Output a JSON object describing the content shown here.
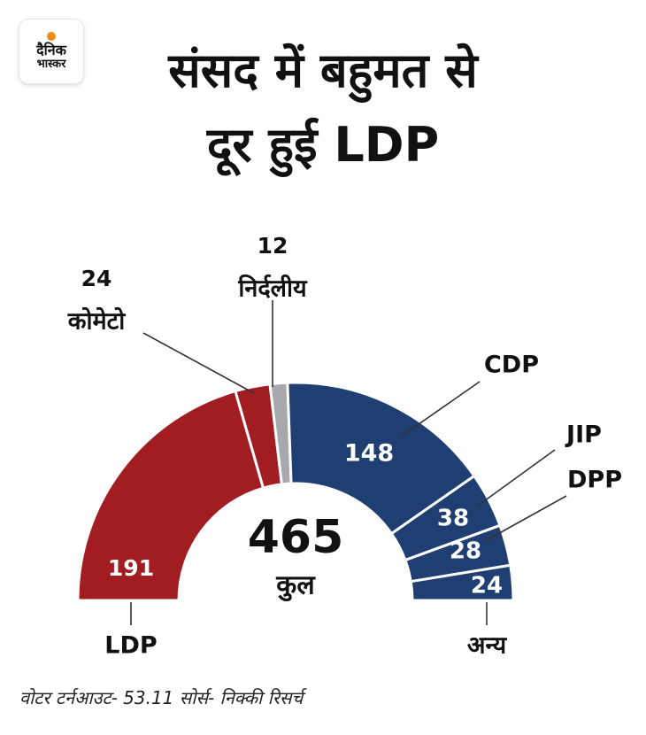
{
  "logo": {
    "line1": "दैनिक",
    "line2": "भास्कर"
  },
  "title": {
    "line1": "संसद में बहुमत से",
    "line2": "दूर हुई LDP"
  },
  "chart_data": {
    "type": "pie",
    "style": "half-donut",
    "title": "संसद में बहुमत से दूर हुई LDP",
    "total": 465,
    "total_label": "कुल",
    "slices": [
      {
        "name": "LDP",
        "value": 191,
        "color": "#a11d22"
      },
      {
        "name": "कोमेटो",
        "value": 24,
        "color": "#a11d22"
      },
      {
        "name": "निर्दलीय",
        "value": 12,
        "color": "#a6a8ab"
      },
      {
        "name": "CDP",
        "value": 148,
        "color": "#1f3f73"
      },
      {
        "name": "JIP",
        "value": 38,
        "color": "#1f3f73"
      },
      {
        "name": "DPP",
        "value": 28,
        "color": "#1f3f73"
      },
      {
        "name": "अन्य",
        "value": 24,
        "color": "#1f3f73"
      }
    ]
  },
  "footer": {
    "text": "वोटर टर्नआउट- 53.11 सोर्स- निक्की रिसर्च"
  }
}
